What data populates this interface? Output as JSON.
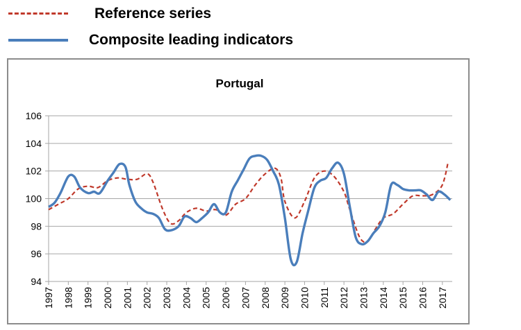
{
  "legend": {
    "reference_label": "Reference series",
    "cli_label": "Composite leading indicators"
  },
  "colors": {
    "reference": "#c0392b",
    "cli": "#4a7ebb",
    "grid": "#a6a6a6"
  },
  "chart_data": {
    "type": "line",
    "title": "Portugal",
    "xlabel": "",
    "ylabel": "",
    "ylim": [
      94,
      106
    ],
    "yticks": [
      "94",
      "96",
      "98",
      "100",
      "102",
      "104",
      "106"
    ],
    "xlim": [
      1997,
      2017.5
    ],
    "xticks": [
      "1997",
      "1998",
      "1999",
      "2000",
      "2001",
      "2002",
      "2003",
      "2004",
      "2005",
      "2006",
      "2007",
      "2008",
      "2009",
      "2010",
      "2011",
      "2012",
      "2013",
      "2014",
      "2015",
      "2016",
      "2017"
    ],
    "grid": "horizontal",
    "series": [
      {
        "name": "Reference series",
        "style": "dashed",
        "x": [
          1997.0,
          1997.5,
          1998.0,
          1998.5,
          1999.0,
          1999.5,
          2000.0,
          2000.5,
          2001.0,
          2001.5,
          2002.0,
          2002.3,
          2002.8,
          2003.2,
          2003.6,
          2004.0,
          2004.5,
          2005.0,
          2005.5,
          2006.0,
          2006.5,
          2007.0,
          2007.5,
          2008.0,
          2008.5,
          2008.8,
          2009.0,
          2009.5,
          2010.0,
          2010.5,
          2011.0,
          2011.5,
          2012.0,
          2012.3,
          2012.8,
          2013.2,
          2013.6,
          2014.0,
          2014.5,
          2015.0,
          2015.5,
          2016.0,
          2016.5,
          2017.0,
          2017.3
        ],
        "values": [
          99.2,
          99.6,
          100.0,
          100.7,
          100.9,
          100.8,
          101.3,
          101.5,
          101.4,
          101.4,
          101.8,
          101.2,
          99.2,
          98.2,
          98.4,
          99.0,
          99.3,
          99.1,
          99.2,
          98.8,
          99.6,
          100.0,
          101.0,
          101.8,
          102.2,
          101.5,
          99.8,
          98.6,
          99.8,
          101.5,
          102.0,
          101.6,
          100.5,
          99.2,
          97.2,
          96.9,
          97.8,
          98.6,
          98.9,
          99.6,
          100.2,
          100.2,
          100.3,
          101.0,
          102.7
        ]
      },
      {
        "name": "Composite leading indicators",
        "style": "solid",
        "x": [
          1997.0,
          1997.3,
          1997.6,
          1998.0,
          1998.3,
          1998.6,
          1999.0,
          1999.3,
          1999.6,
          2000.0,
          2000.3,
          2000.6,
          2000.9,
          2001.1,
          2001.4,
          2001.7,
          2002.0,
          2002.3,
          2002.6,
          2002.9,
          2003.2,
          2003.6,
          2003.9,
          2004.2,
          2004.5,
          2004.8,
          2005.1,
          2005.4,
          2005.7,
          2006.0,
          2006.3,
          2006.6,
          2006.9,
          2007.2,
          2007.5,
          2007.8,
          2008.1,
          2008.4,
          2008.7,
          2009.0,
          2009.3,
          2009.6,
          2009.9,
          2010.2,
          2010.5,
          2010.8,
          2011.1,
          2011.4,
          2011.7,
          2012.0,
          2012.3,
          2012.6,
          2012.9,
          2013.2,
          2013.5,
          2013.8,
          2014.1,
          2014.4,
          2014.7,
          2015.0,
          2015.3,
          2015.6,
          2015.9,
          2016.2,
          2016.5,
          2016.8,
          2017.1,
          2017.4
        ],
        "values": [
          99.4,
          99.7,
          100.4,
          101.6,
          101.6,
          100.8,
          100.4,
          100.5,
          100.4,
          101.3,
          101.9,
          102.5,
          102.3,
          101.0,
          99.8,
          99.3,
          99.0,
          98.9,
          98.6,
          97.8,
          97.7,
          98.0,
          98.7,
          98.6,
          98.3,
          98.6,
          99.0,
          99.6,
          99.0,
          99.0,
          100.5,
          101.3,
          102.1,
          102.9,
          103.1,
          103.1,
          102.8,
          102.0,
          101.0,
          98.6,
          95.6,
          95.4,
          97.5,
          99.2,
          100.8,
          101.3,
          101.5,
          102.2,
          102.6,
          101.8,
          99.4,
          97.2,
          96.7,
          96.9,
          97.5,
          98.0,
          99.0,
          101.0,
          101.0,
          100.7,
          100.6,
          100.6,
          100.6,
          100.3,
          99.9,
          100.5,
          100.3,
          99.9
        ]
      }
    ]
  }
}
